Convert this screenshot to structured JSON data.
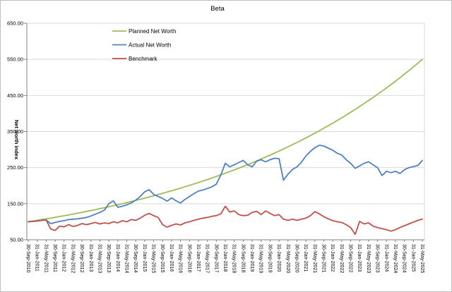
{
  "chart_data": {
    "type": "line",
    "title": "Beta",
    "xlabel": "",
    "ylabel": "Net worth index",
    "ylim": [
      50,
      650
    ],
    "ytick_step": 100,
    "ytick_labels": [
      "50.00",
      "150.00",
      "250.00",
      "350.00",
      "450.00",
      "550.00",
      "650.00"
    ],
    "grid": true,
    "legend_position": "inside-top-center",
    "x_tick_labels": [
      "30-Sep-2010",
      "31-Jan-2011",
      "31-May-2011",
      "30-Sep-2011",
      "31-Jan-2012",
      "31-May-2012",
      "30-Sep-2012",
      "31-Jan-2013",
      "31-May-2013",
      "30-Sep-2013",
      "31-Jan-2014",
      "31-May-2014",
      "30-Sep-2014",
      "31-Jan-2015",
      "31-May-2015",
      "30-Sep-2015",
      "31-Jan-2016",
      "31-May-2016",
      "30-Sep-2016",
      "31-Jan-2017",
      "31-May-2017",
      "30-Sep-2017",
      "31-Jan-2018",
      "31-May-2018",
      "30-Sep-2018",
      "31-Jan-2019",
      "31-May-2019",
      "30-Sep-2019",
      "31-Jan-2020",
      "31-May-2020",
      "30-Sep-2020",
      "31-Jan-2021",
      "31-May-2021",
      "30-Sep-2021",
      "31-Jan-2022",
      "31-May-2022",
      "30-Sep-2022",
      "31-Jan-2023",
      "31-May-2023",
      "30-Sep-2023",
      "31-Jan-2024",
      "31-May-2024",
      "30-Sep-2024",
      "31-Jan-2025",
      "31-May-2025"
    ],
    "x": [
      "30-Sep-2010",
      "30-Nov-2010",
      "31-Jan-2011",
      "31-Mar-2011",
      "31-May-2011",
      "31-Jul-2011",
      "30-Sep-2011",
      "30-Nov-2011",
      "31-Jan-2012",
      "31-Mar-2012",
      "31-May-2012",
      "31-Jul-2012",
      "30-Sep-2012",
      "30-Nov-2012",
      "31-Jan-2013",
      "31-Mar-2013",
      "31-May-2013",
      "31-Jul-2013",
      "30-Sep-2013",
      "30-Nov-2013",
      "31-Jan-2014",
      "31-Mar-2014",
      "31-May-2014",
      "31-Jul-2014",
      "30-Sep-2014",
      "30-Nov-2014",
      "31-Jan-2015",
      "31-Mar-2015",
      "31-May-2015",
      "31-Jul-2015",
      "30-Sep-2015",
      "30-Nov-2015",
      "31-Jan-2016",
      "31-Mar-2016",
      "31-May-2016",
      "31-Jul-2016",
      "30-Sep-2016",
      "30-Nov-2016",
      "31-Jan-2017",
      "31-Mar-2017",
      "31-May-2017",
      "31-Jul-2017",
      "30-Sep-2017",
      "30-Nov-2017",
      "31-Jan-2018",
      "31-Mar-2018",
      "31-May-2018",
      "31-Jul-2018",
      "30-Sep-2018",
      "30-Nov-2018",
      "31-Jan-2019",
      "31-Mar-2019",
      "31-May-2019",
      "31-Jul-2019",
      "30-Sep-2019",
      "30-Nov-2019",
      "31-Jan-2020",
      "31-Mar-2020",
      "31-May-2020",
      "31-Jul-2020",
      "30-Sep-2020",
      "30-Nov-2020",
      "31-Jan-2021",
      "31-Mar-2021",
      "31-May-2021",
      "31-Jul-2021",
      "30-Sep-2021",
      "30-Nov-2021",
      "31-Jan-2022",
      "31-Mar-2022",
      "31-May-2022",
      "31-Jul-2022",
      "30-Sep-2022",
      "30-Nov-2022",
      "31-Jan-2023",
      "31-Mar-2023",
      "31-May-2023",
      "31-Jul-2023",
      "30-Sep-2023",
      "30-Nov-2023",
      "31-Jan-2024",
      "31-Mar-2024",
      "31-May-2024",
      "31-Jul-2024",
      "30-Sep-2024",
      "30-Nov-2024",
      "31-Jan-2025",
      "31-Mar-2025",
      "31-May-2025"
    ],
    "series": [
      {
        "name": "Planned Net Worth",
        "color": "#9BBB59",
        "values": [
          100,
          102,
          103.9,
          106,
          108,
          110.1,
          112.3,
          114.5,
          116.7,
          119,
          121.3,
          123.7,
          126.1,
          128.6,
          131.1,
          133.7,
          136.3,
          139,
          141.7,
          144.5,
          147.3,
          150.2,
          153.1,
          156.1,
          159.2,
          162.3,
          165.4,
          168.7,
          172,
          175.3,
          178.8,
          182.3,
          185.8,
          189.5,
          193.2,
          197,
          200.8,
          204.7,
          208.7,
          212.8,
          217,
          221.2,
          225.6,
          230,
          234.5,
          239.1,
          243.7,
          248.5,
          253.4,
          258.3,
          263.4,
          268.5,
          273.8,
          279.2,
          284.6,
          290.2,
          295.9,
          301.7,
          307.6,
          313.6,
          319.7,
          326,
          332.3,
          338.8,
          345.5,
          352.2,
          359.1,
          366.2,
          373.3,
          380.6,
          388.1,
          395.7,
          403.4,
          411.3,
          419.3,
          427.5,
          435.9,
          444.4,
          453.1,
          462,
          471,
          480.2,
          489.6,
          499.2,
          509,
          518.9,
          529.1,
          539.4,
          550
        ]
      },
      {
        "name": "Actual Net Worth",
        "color": "#4F81BD",
        "values": [
          100,
          101,
          102,
          104,
          105,
          95,
          98,
          101,
          103,
          106,
          107,
          108,
          110,
          112,
          116,
          121,
          126,
          132,
          150,
          158,
          140,
          143,
          147,
          152,
          160,
          170,
          183,
          189,
          176,
          170,
          165,
          157,
          166,
          158,
          152,
          162,
          170,
          178,
          185,
          188,
          192,
          197,
          204,
          230,
          262,
          252,
          258,
          264,
          270,
          258,
          252,
          268,
          272,
          266,
          272,
          276,
          275,
          215,
          232,
          245,
          252,
          265,
          282,
          295,
          305,
          312,
          310,
          304,
          298,
          290,
          285,
          272,
          262,
          248,
          255,
          262,
          266,
          258,
          250,
          228,
          240,
          236,
          240,
          234,
          244,
          250,
          253,
          256,
          270
        ]
      },
      {
        "name": "Benchmark",
        "color": "#C0504D",
        "values": [
          100,
          101,
          102,
          104,
          105,
          80,
          76,
          88,
          86,
          92,
          87,
          90,
          95,
          92,
          95,
          98,
          94,
          97,
          95,
          100,
          97,
          103,
          100,
          106,
          104,
          110,
          118,
          123,
          117,
          112,
          92,
          85,
          90,
          94,
          91,
          97,
          100,
          104,
          107,
          110,
          112,
          115,
          117,
          122,
          143,
          127,
          130,
          120,
          117,
          118,
          126,
          129,
          120,
          130,
          123,
          117,
          120,
          107,
          104,
          107,
          104,
          107,
          110,
          117,
          128,
          122,
          114,
          108,
          103,
          100,
          98,
          92,
          84,
          65,
          101,
          94,
          97,
          88,
          84,
          81,
          78,
          74,
          78,
          84,
          89,
          94,
          99,
          104,
          107
        ]
      }
    ],
    "colors": {
      "gridline": "#D9D9D9",
      "axis": "#808080",
      "plot_border": "#D9D9D9",
      "text": "#000000"
    }
  }
}
